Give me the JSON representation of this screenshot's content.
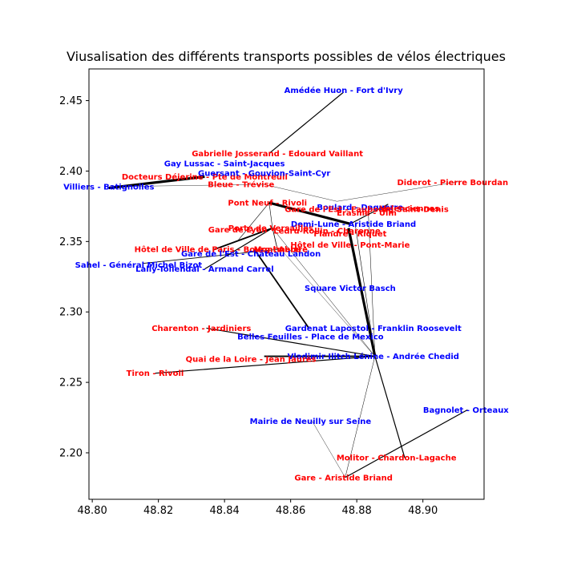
{
  "chart_data": {
    "type": "network",
    "title": "Viusalisation des différents transports possibles de vélos électriques",
    "xlabel": "",
    "ylabel": "",
    "xlim": [
      48.799,
      48.9185
    ],
    "ylim": [
      2.167,
      2.4725
    ],
    "grid": false,
    "legend": "none",
    "x_ticks": [
      48.8,
      48.82,
      48.84,
      48.86,
      48.88,
      48.9
    ],
    "x_tick_labels": [
      "48.80",
      "48.82",
      "48.84",
      "48.86",
      "48.88",
      "48.90"
    ],
    "y_ticks": [
      2.2,
      2.25,
      2.3,
      2.35,
      2.4,
      2.45
    ],
    "y_tick_labels": [
      "2.20",
      "2.25",
      "2.30",
      "2.35",
      "2.40",
      "2.45"
    ],
    "colors": {
      "red": "#ff0000",
      "blue": "#0000ff",
      "edge": "#000000"
    },
    "nodes": [
      {
        "id": "amedee",
        "label": "Amédée Huon - Fort d'Ivry",
        "x": 48.876,
        "y": 2.4575,
        "color": "blue"
      },
      {
        "id": "gabrielle",
        "label": "Gabrielle Josserand - Edouard Vaillant",
        "x": 48.856,
        "y": 2.4125,
        "color": "red"
      },
      {
        "id": "gaylussac",
        "label": "Gay Lussac - Saint-Jacques",
        "x": 48.84,
        "y": 2.4055,
        "color": "blue"
      },
      {
        "id": "docteurs",
        "label": "Docteurs Déjerine - Pte de Montreuil",
        "x": 48.834,
        "y": 2.396,
        "color": "red"
      },
      {
        "id": "guersant",
        "label": "Guersant - Gouvion-Saint-Cyr",
        "x": 48.852,
        "y": 2.3985,
        "color": "blue"
      },
      {
        "id": "villiers",
        "label": "Villiers - Batignolles",
        "x": 48.805,
        "y": 2.389,
        "color": "blue"
      },
      {
        "id": "bleue",
        "label": "Bleue - Trévise",
        "x": 48.845,
        "y": 2.3905,
        "color": "red"
      },
      {
        "id": "diderot",
        "label": "Diderot - Pierre Bourdan",
        "x": 48.909,
        "y": 2.392,
        "color": "red"
      },
      {
        "id": "pontneuf",
        "label": "Pont Neuf - Rivoli",
        "x": 48.853,
        "y": 2.3775,
        "color": "red"
      },
      {
        "id": "boulard",
        "label": "Boulard - Daguerre",
        "x": 48.881,
        "y": 2.3745,
        "color": "blue"
      },
      {
        "id": "garest",
        "label": "Gare de l'Est - Faubourg Saint-Denis",
        "x": 48.883,
        "y": 2.373,
        "color": "red"
      },
      {
        "id": "valenciennes",
        "label": "Valenciennes",
        "x": 48.896,
        "y": 2.3735,
        "color": "red"
      },
      {
        "id": "erasme",
        "label": "Erasme - Ulm",
        "x": 48.883,
        "y": 2.3705,
        "color": "red"
      },
      {
        "id": "demilune",
        "label": "Demi-Lune - Aristide Briand",
        "x": 48.879,
        "y": 2.3625,
        "color": "blue"
      },
      {
        "id": "ledrurollin",
        "label": "Ledru-Rollin - Charonne",
        "x": 48.871,
        "y": 2.3575,
        "color": "red"
      },
      {
        "id": "flandre",
        "label": "Flandre - Riquet",
        "x": 48.878,
        "y": 2.3555,
        "color": "red"
      },
      {
        "id": "garedelyon",
        "label": "Gare de Lyon",
        "x": 48.844,
        "y": 2.3585,
        "color": "red"
      },
      {
        "id": "portedeversailles",
        "label": "Porte de Versailles",
        "x": 48.854,
        "y": 2.3595,
        "color": "red"
      },
      {
        "id": "hotelvillepm",
        "label": "Hôtel de Ville - Pont-Marie",
        "x": 48.878,
        "y": 2.3475,
        "color": "red"
      },
      {
        "id": "hotelvillebh",
        "label": "Hôtel de Ville de Paris - Bourg l'Abbé",
        "x": 48.838,
        "y": 2.3445,
        "color": "red"
      },
      {
        "id": "montmartre",
        "label": "Montmartre",
        "x": 48.857,
        "y": 2.3445,
        "color": "red"
      },
      {
        "id": "garechateau",
        "label": "Gare de l'Est - Château Landon",
        "x": 48.848,
        "y": 2.3415,
        "color": "blue"
      },
      {
        "id": "sahel",
        "label": "Sahel - Général Michel Bizot",
        "x": 48.814,
        "y": 2.3335,
        "color": "blue"
      },
      {
        "id": "lally",
        "label": "Lally-Tollendal - Armand Carrel",
        "x": 48.834,
        "y": 2.3305,
        "color": "blue"
      },
      {
        "id": "squarevb",
        "label": "Square Victor Basch",
        "x": 48.878,
        "y": 2.317,
        "color": "blue"
      },
      {
        "id": "charenton",
        "label": "Charenton - Jardiniers",
        "x": 48.833,
        "y": 2.2885,
        "color": "red"
      },
      {
        "id": "gardenat",
        "label": "Gardenat Lapostol - Franklin Roosevelt",
        "x": 48.885,
        "y": 2.2885,
        "color": "blue"
      },
      {
        "id": "bellesfeuilles",
        "label": "Belles Feuilles - Place de Mexico",
        "x": 48.866,
        "y": 2.2825,
        "color": "blue"
      },
      {
        "id": "vladimir",
        "label": "Vladimir Ilitch Lénine - Andrée Chedid",
        "x": 48.885,
        "y": 2.2685,
        "color": "blue"
      },
      {
        "id": "quailoire",
        "label": "Quai de la Loire - Jean Jaurès",
        "x": 48.848,
        "y": 2.2665,
        "color": "red"
      },
      {
        "id": "tiron",
        "label": "Tiron - Rivoli",
        "x": 48.819,
        "y": 2.2565,
        "color": "red"
      },
      {
        "id": "bagnolet",
        "label": "Bagnolet - Orteaux",
        "x": 48.913,
        "y": 2.2305,
        "color": "blue"
      },
      {
        "id": "mairieneuilly",
        "label": "Mairie de Neuilly sur Seine",
        "x": 48.866,
        "y": 2.2225,
        "color": "blue"
      },
      {
        "id": "molitor",
        "label": "Molitor - Chardon-Lagache",
        "x": 48.892,
        "y": 2.1965,
        "color": "red"
      },
      {
        "id": "garearistide",
        "label": "Gare - Aristide Briand",
        "x": 48.876,
        "y": 2.1825,
        "color": "red"
      }
    ],
    "edges": [
      {
        "x1": 48.876,
        "y1": 2.456,
        "x2": 48.8535,
        "y2": 2.4125,
        "width": 1.2
      },
      {
        "x1": 48.805,
        "y1": 2.388,
        "x2": 48.834,
        "y2": 2.396,
        "width": 3.2
      },
      {
        "x1": 48.807,
        "y1": 2.389,
        "x2": 48.852,
        "y2": 2.3905,
        "width": 0.4
      },
      {
        "x1": 48.852,
        "y1": 2.3905,
        "x2": 48.874,
        "y2": 2.3785,
        "width": 0.4
      },
      {
        "x1": 48.874,
        "y1": 2.3785,
        "x2": 48.911,
        "y2": 2.3925,
        "width": 0.4
      },
      {
        "x1": 48.8535,
        "y1": 2.3775,
        "x2": 48.878,
        "y2": 2.3625,
        "width": 3.2
      },
      {
        "x1": 48.878,
        "y1": 2.3625,
        "x2": 48.8895,
        "y2": 2.3765,
        "width": 1.2
      },
      {
        "x1": 48.8535,
        "y1": 2.3775,
        "x2": 48.844,
        "y2": 2.3505,
        "width": 0.6
      },
      {
        "x1": 48.8545,
        "y1": 2.3595,
        "x2": 48.8535,
        "y2": 2.3775,
        "width": 0.6
      },
      {
        "x1": 48.8545,
        "y1": 2.3595,
        "x2": 48.8365,
        "y2": 2.344,
        "width": 1.8
      },
      {
        "x1": 48.8545,
        "y1": 2.3595,
        "x2": 48.834,
        "y2": 2.3305,
        "width": 1.2
      },
      {
        "x1": 48.8545,
        "y1": 2.3595,
        "x2": 48.856,
        "y2": 2.3445,
        "width": 0.8
      },
      {
        "x1": 48.8565,
        "y1": 2.3445,
        "x2": 48.8155,
        "y2": 2.3345,
        "width": 0.8
      },
      {
        "x1": 48.849,
        "y1": 2.3445,
        "x2": 48.8655,
        "y2": 2.2885,
        "width": 1.8
      },
      {
        "x1": 48.8545,
        "y1": 2.3595,
        "x2": 48.8855,
        "y2": 2.2685,
        "width": 0.5
      },
      {
        "x1": 48.857,
        "y1": 2.3445,
        "x2": 48.8855,
        "y2": 2.2685,
        "width": 0.4
      },
      {
        "x1": 48.8775,
        "y1": 2.3595,
        "x2": 48.8855,
        "y2": 2.2685,
        "width": 3.2
      },
      {
        "x1": 48.8795,
        "y1": 2.3625,
        "x2": 48.8855,
        "y2": 2.2685,
        "width": 0.6
      },
      {
        "x1": 48.8835,
        "y1": 2.3705,
        "x2": 48.8855,
        "y2": 2.2685,
        "width": 0.5
      },
      {
        "x1": 48.8855,
        "y1": 2.2685,
        "x2": 48.852,
        "y2": 2.2685,
        "width": 1.8
      },
      {
        "x1": 48.8855,
        "y1": 2.2685,
        "x2": 48.819,
        "y2": 2.2565,
        "width": 1.2
      },
      {
        "x1": 48.8855,
        "y1": 2.2685,
        "x2": 48.8345,
        "y2": 2.2885,
        "width": 1.2
      },
      {
        "x1": 48.8855,
        "y1": 2.2685,
        "x2": 48.8945,
        "y2": 2.1965,
        "width": 1.2
      },
      {
        "x1": 48.8855,
        "y1": 2.2685,
        "x2": 48.8765,
        "y2": 2.1825,
        "width": 0.5
      },
      {
        "x1": 48.8765,
        "y1": 2.1825,
        "x2": 48.9135,
        "y2": 2.2305,
        "width": 1.2
      },
      {
        "x1": 48.8765,
        "y1": 2.1825,
        "x2": 48.8665,
        "y2": 2.2225,
        "width": 0.4
      }
    ]
  }
}
